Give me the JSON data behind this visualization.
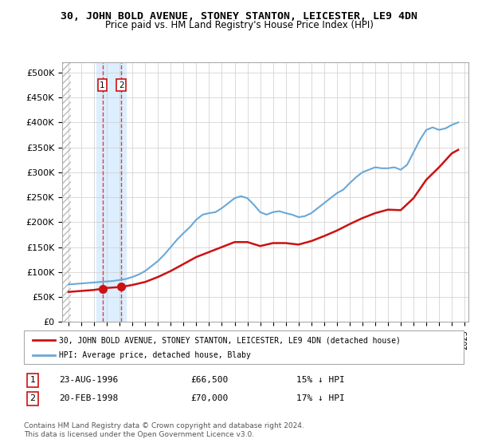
{
  "title": "30, JOHN BOLD AVENUE, STONEY STANTON, LEICESTER, LE9 4DN",
  "subtitle": "Price paid vs. HM Land Registry's House Price Index (HPI)",
  "legend_line1": "30, JOHN BOLD AVENUE, STONEY STANTON, LEICESTER, LE9 4DN (detached house)",
  "legend_line2": "HPI: Average price, detached house, Blaby",
  "footer1": "Contains HM Land Registry data © Crown copyright and database right 2024.",
  "footer2": "This data is licensed under the Open Government Licence v3.0.",
  "transaction1_label": "1",
  "transaction1_date": "23-AUG-1996",
  "transaction1_price": "£66,500",
  "transaction1_hpi": "15% ↓ HPI",
  "transaction2_label": "2",
  "transaction2_date": "20-FEB-1998",
  "transaction2_price": "£70,000",
  "transaction2_hpi": "17% ↓ HPI",
  "transaction1_year": 1996.65,
  "transaction1_value": 66500,
  "transaction2_year": 1998.13,
  "transaction2_value": 70000,
  "hpi_color": "#6aa8d8",
  "price_color": "#cc1111",
  "transaction_marker_color": "#cc1111",
  "hatch_color": "#cccccc",
  "shaded_region_color": "#ddeeff",
  "dashed_line_color": "#cc4444",
  "ylim": [
    0,
    520000
  ],
  "yticks": [
    0,
    50000,
    100000,
    150000,
    200000,
    250000,
    300000,
    350000,
    400000,
    450000,
    500000
  ],
  "hpi_x": [
    1994,
    1995,
    1995.5,
    1996,
    1996.5,
    1997,
    1997.5,
    1998,
    1998.5,
    1999,
    1999.5,
    2000,
    2000.5,
    2001,
    2001.5,
    2002,
    2002.5,
    2003,
    2003.5,
    2004,
    2004.5,
    2005,
    2005.5,
    2006,
    2006.5,
    2007,
    2007.5,
    2008,
    2008.5,
    2009,
    2009.5,
    2010,
    2010.5,
    2011,
    2011.5,
    2012,
    2012.5,
    2013,
    2013.5,
    2014,
    2014.5,
    2015,
    2015.5,
    2016,
    2016.5,
    2017,
    2017.5,
    2018,
    2018.5,
    2019,
    2019.5,
    2020,
    2020.5,
    2021,
    2021.5,
    2022,
    2022.5,
    2023,
    2023.5,
    2024,
    2024.5
  ],
  "hpi_y": [
    75000,
    77000,
    78000,
    79000,
    80000,
    81000,
    82000,
    84000,
    86000,
    90000,
    95000,
    102000,
    112000,
    122000,
    135000,
    150000,
    165000,
    178000,
    190000,
    205000,
    215000,
    218000,
    220000,
    228000,
    238000,
    248000,
    252000,
    248000,
    235000,
    220000,
    215000,
    220000,
    222000,
    218000,
    215000,
    210000,
    212000,
    218000,
    228000,
    238000,
    248000,
    258000,
    265000,
    278000,
    290000,
    300000,
    305000,
    310000,
    308000,
    308000,
    310000,
    305000,
    315000,
    340000,
    365000,
    385000,
    390000,
    385000,
    388000,
    395000,
    400000
  ],
  "price_x": [
    1994,
    1995,
    1996,
    1996.65,
    1997,
    1998.13,
    1999,
    2000,
    2001,
    2002,
    2003,
    2004,
    2005,
    2006,
    2007,
    2008,
    2009,
    2010,
    2011,
    2012,
    2013,
    2014,
    2015,
    2016,
    2017,
    2018,
    2019,
    2020,
    2021,
    2022,
    2023,
    2024,
    2024.5
  ],
  "price_y": [
    60000,
    62000,
    64000,
    66500,
    68000,
    70000,
    74000,
    80000,
    90000,
    102000,
    116000,
    130000,
    140000,
    150000,
    160000,
    160000,
    152000,
    158000,
    158000,
    155000,
    162000,
    172000,
    183000,
    196000,
    208000,
    218000,
    225000,
    224000,
    248000,
    285000,
    310000,
    338000,
    345000
  ],
  "xmin": 1993.5,
  "xmax": 2025.3,
  "hatch_xmax": 1994.2,
  "shade_xmin": 1996.2,
  "shade_xmax": 1998.5
}
